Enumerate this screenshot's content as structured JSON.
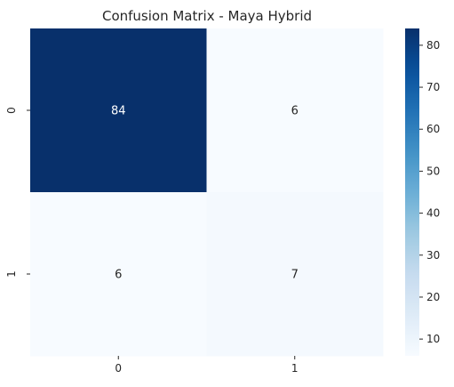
{
  "chart_data": {
    "type": "heatmap",
    "title": "Confusion Matrix - Maya Hybrid",
    "xlabel": "",
    "ylabel": "",
    "x_categories": [
      "0",
      "1"
    ],
    "y_categories": [
      "0",
      "1"
    ],
    "matrix": [
      [
        84,
        6
      ],
      [
        6,
        7
      ]
    ],
    "colormap": "Blues",
    "colorbar": {
      "min": 6,
      "max": 84,
      "ticks": [
        10,
        20,
        30,
        40,
        50,
        60,
        70,
        80
      ]
    },
    "colors": {
      "low": "#f7fbff",
      "high": "#08306b",
      "dark_text": "#262626",
      "light_text": "#ffffff"
    }
  }
}
